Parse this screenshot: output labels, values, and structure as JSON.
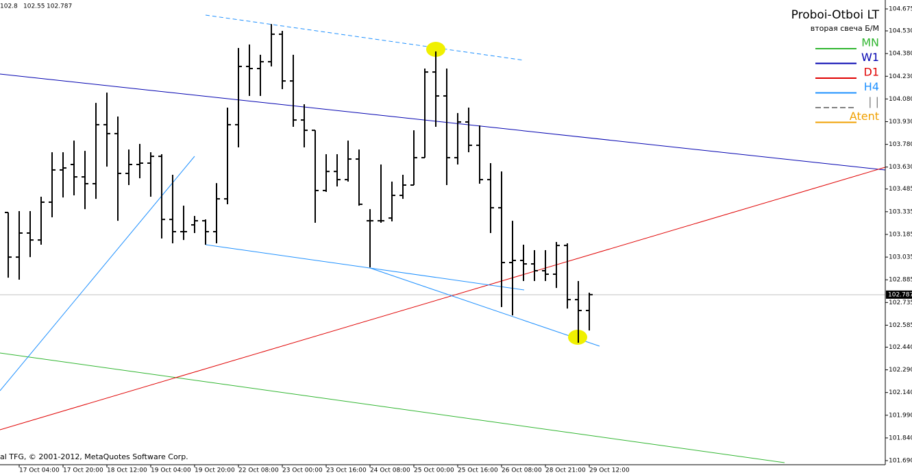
{
  "chart_data": {
    "type": "ohlc",
    "title": "Proboi-Otboi LT",
    "subtitle": "вторая свеча Б/М",
    "copyright": "al TFG, © 2001-2012, MetaQuotes Software Corp.",
    "color": "#000000",
    "categories": [
      null,
      "17 Oct 04:00",
      null,
      null,
      null,
      "17 Oct 20:00",
      null,
      null,
      null,
      "18 Oct 12:00",
      null,
      null,
      null,
      "19 Oct 04:00",
      null,
      null,
      null,
      "19 Oct 20:00",
      null,
      null,
      null,
      "22 Oct 08:00",
      null,
      null,
      null,
      "23 Oct 00:00",
      null,
      null,
      null,
      "23 Oct 16:00",
      null,
      null,
      null,
      "24 Oct 08:00",
      null,
      null,
      null,
      "25 Oct 00:00",
      null,
      null,
      null,
      "25 Oct 16:00",
      null,
      null,
      null,
      "26 Oct 08:00",
      null,
      null,
      null,
      "28 Oct 21:00",
      null,
      null,
      null,
      "29 Oct 12:00"
    ],
    "open": [
      103.33,
      103.035,
      103.194,
      103.148,
      103.398,
      103.611,
      103.647,
      103.565,
      103.52,
      103.91,
      103.851,
      103.588,
      103.647,
      103.656,
      103.701,
      103.284,
      103.203,
      103.248,
      103.275,
      103.203,
      103.42,
      103.91,
      104.295,
      104.281,
      104.326,
      104.508,
      104.199,
      103.941,
      103.873,
      103.475,
      103.601,
      103.547,
      103.683,
      103.275,
      103.275,
      103.293,
      103.443,
      103.511,
      103.692,
      104.258,
      104.1,
      103.692,
      103.928,
      103.774,
      103.547,
      103.361,
      102.999,
      103.013,
      102.99,
      102.945,
      102.922,
      103.112,
      102.754,
      102.682
    ],
    "high": [
      103.33,
      103.339,
      103.339,
      103.434,
      103.728,
      103.728,
      103.805,
      103.737,
      104.054,
      104.122,
      103.964,
      103.746,
      103.783,
      103.728,
      103.715,
      103.579,
      103.375,
      103.307,
      103.284,
      103.524,
      104.023,
      104.417,
      104.44,
      104.372,
      104.575,
      104.53,
      104.372,
      104.045,
      103.873,
      103.715,
      103.715,
      103.805,
      103.746,
      103.352,
      103.647,
      103.534,
      103.579,
      103.873,
      104.281,
      104.394,
      104.281,
      103.987,
      104.023,
      103.905,
      103.656,
      103.601,
      103.275,
      103.117,
      103.081,
      103.081,
      103.135,
      103.126,
      102.877,
      102.8
    ],
    "low": [
      102.899,
      102.886,
      103.035,
      103.117,
      103.298,
      103.429,
      103.443,
      103.352,
      103.42,
      103.633,
      103.275,
      103.511,
      103.556,
      103.434,
      103.158,
      103.126,
      103.148,
      103.194,
      103.117,
      103.126,
      103.384,
      103.76,
      104.1,
      104.1,
      104.295,
      104.145,
      103.896,
      103.76,
      103.262,
      103.466,
      103.502,
      103.534,
      103.375,
      102.967,
      103.262,
      103.271,
      103.42,
      103.511,
      103.692,
      103.896,
      103.511,
      103.647,
      103.728,
      103.52,
      103.194,
      102.705,
      102.65,
      102.877,
      102.877,
      102.877,
      102.831,
      102.695,
      102.469,
      102.55
    ],
    "close": [
      103.035,
      103.194,
      103.148,
      103.398,
      103.611,
      103.624,
      103.565,
      103.52,
      103.91,
      103.851,
      103.588,
      103.647,
      103.656,
      103.701,
      103.284,
      103.203,
      103.203,
      103.275,
      103.203,
      103.42,
      103.91,
      104.295,
      104.281,
      104.326,
      104.508,
      104.199,
      103.941,
      103.873,
      103.475,
      103.601,
      103.547,
      103.683,
      103.384,
      103.275,
      103.275,
      103.443,
      103.511,
      103.692,
      104.258,
      104.1,
      103.692,
      103.928,
      103.774,
      103.547,
      103.361,
      102.999,
      103.013,
      102.99,
      102.945,
      102.922,
      103.112,
      102.754,
      102.682,
      102.787
    ],
    "ylim": [
      101.663,
      104.734
    ],
    "yticks": [
      104.675,
      {
        "value": 104.53,
        "label": "104.530"
      },
      {
        "value": 104.38,
        "label": "104.380"
      },
      {
        "value": 104.23,
        "label": "104.230"
      },
      {
        "value": 104.08,
        "label": "104.080"
      },
      {
        "value": 103.93,
        "label": "103.930"
      },
      {
        "value": 103.78,
        "label": "103.780"
      },
      {
        "value": 103.63,
        "label": "103.630"
      },
      103.485,
      103.335,
      103.185,
      103.035,
      102.885,
      102.735,
      102.585,
      {
        "value": 102.44,
        "label": "102.440"
      },
      {
        "value": 102.29,
        "label": "102.290"
      },
      {
        "value": 102.14,
        "label": "102.140"
      },
      {
        "value": 101.99,
        "label": "101.990"
      },
      {
        "value": 101.84,
        "label": "101.840"
      },
      {
        "value": 101.69,
        "label": "101.690"
      }
    ],
    "legend": [
      {
        "name": "MN",
        "color": "#2fb52f",
        "dash": false
      },
      {
        "name": "W1",
        "color": "#0000b0",
        "dash": false
      },
      {
        "name": "D1",
        "color": "#e00000",
        "dash": false
      },
      {
        "name": "H4",
        "color": "#1e90ff",
        "dash": false
      },
      {
        "name": "| |",
        "color": "#808080",
        "dash": true
      },
      {
        "name": "Atent",
        "color": "#f0a000",
        "dash": false
      }
    ]
  }
}
